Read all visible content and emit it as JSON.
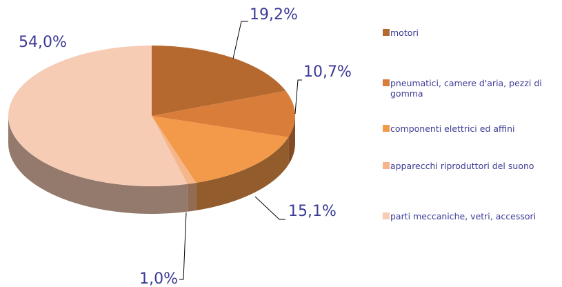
{
  "chart_data": {
    "type": "pie",
    "categories": [
      "motori",
      "pneumatici, camere d'aria, pezzi di gomma",
      "componenti elettrici ed affini",
      "apparecchi riproduttori del suono",
      "parti meccaniche, vetri, accessori"
    ],
    "values": [
      19.2,
      10.7,
      15.1,
      1.0,
      54.0
    ],
    "value_labels": [
      "19,2%",
      "10,7%",
      "15,1%",
      "1,0%",
      "54,0%"
    ],
    "colors": [
      "#b5692f",
      "#d97d3a",
      "#f39a4a",
      "#f4b68a",
      "#f7ccb4"
    ],
    "legend": "right"
  }
}
